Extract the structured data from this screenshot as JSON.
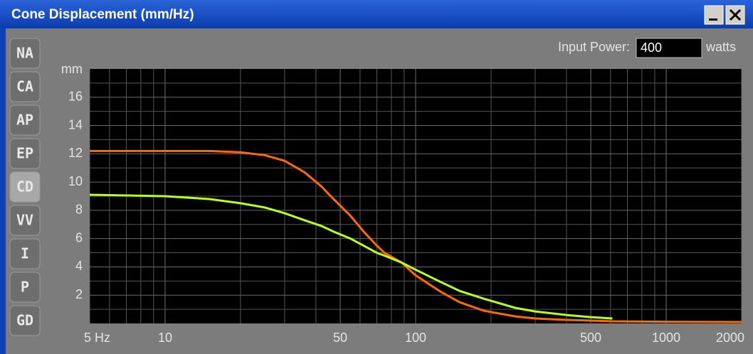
{
  "window": {
    "title": "Cone Displacement (mm/Hz)"
  },
  "tabs": [
    "NA",
    "CA",
    "AP",
    "EP",
    "CD",
    "VV",
    "I",
    "P",
    "GD"
  ],
  "selected_tab": "CD",
  "input_power": {
    "label": "Input Power:",
    "value": "400",
    "unit": "watts"
  },
  "chart_data": {
    "type": "line",
    "y_label": "mm",
    "log_x": true,
    "grid": true,
    "x": [
      5,
      10,
      15,
      20,
      25,
      30,
      36,
      42,
      47,
      55,
      62,
      70,
      75,
      88,
      100,
      127,
      150,
      187,
      250,
      300,
      400,
      500,
      610,
      1000,
      2000
    ],
    "series": [
      {
        "color": "#ff6a00",
        "values": [
          12.2,
          12.2,
          12.2,
          12.1,
          11.9,
          11.5,
          10.7,
          9.7,
          8.8,
          7.6,
          6.5,
          5.5,
          5.0,
          4.3,
          3.4,
          2.2,
          1.5,
          0.9,
          0.5,
          0.35,
          0.25,
          0.2,
          0.15,
          0.12,
          0.1
        ]
      },
      {
        "color": "#b8ff1a",
        "values": [
          9.1,
          9.0,
          8.8,
          8.5,
          8.2,
          7.8,
          7.3,
          6.9,
          6.5,
          6.0,
          5.5,
          5.0,
          4.8,
          4.3,
          3.8,
          2.9,
          2.3,
          1.75,
          1.1,
          0.85,
          0.6,
          0.45,
          0.35,
          null,
          null
        ]
      }
    ],
    "xlim": [
      5,
      2000
    ],
    "xticks": [
      {
        "value": 5,
        "label": "5 Hz"
      },
      10,
      50,
      100,
      500,
      1000,
      2000
    ],
    "ylim": [
      0,
      18
    ],
    "yticks": [
      2,
      4,
      6,
      8,
      10,
      12,
      14,
      16
    ]
  }
}
